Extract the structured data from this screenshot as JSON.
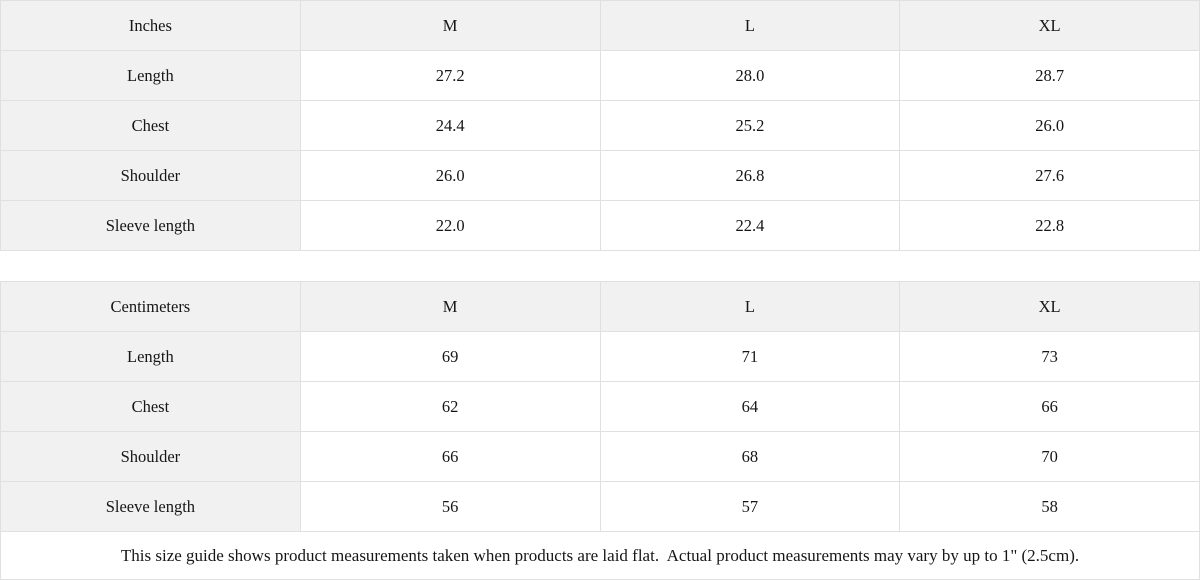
{
  "tables": [
    {
      "unit_label": "Inches",
      "columns": [
        "M",
        "L",
        "XL"
      ],
      "rows": [
        {
          "label": "Length",
          "values": [
            "27.2",
            "28.0",
            "28.7"
          ]
        },
        {
          "label": "Chest",
          "values": [
            "24.4",
            "25.2",
            "26.0"
          ]
        },
        {
          "label": "Shoulder",
          "values": [
            "26.0",
            "26.8",
            "27.6"
          ]
        },
        {
          "label": "Sleeve length",
          "values": [
            "22.0",
            "22.4",
            "22.8"
          ]
        }
      ]
    },
    {
      "unit_label": "Centimeters",
      "columns": [
        "M",
        "L",
        "XL"
      ],
      "rows": [
        {
          "label": "Length",
          "values": [
            "69",
            "71",
            "73"
          ]
        },
        {
          "label": "Chest",
          "values": [
            "62",
            "64",
            "66"
          ]
        },
        {
          "label": "Shoulder",
          "values": [
            "66",
            "68",
            "70"
          ]
        },
        {
          "label": "Sleeve length",
          "values": [
            "56",
            "57",
            "58"
          ]
        }
      ]
    }
  ],
  "note": "This size guide shows product measurements taken when products are laid flat.  Actual product measurements may vary by up to 1\" (2.5cm).",
  "colors": {
    "header_bg": "#f1f1f1",
    "border": "#e0e0e0",
    "text": "#161616"
  }
}
